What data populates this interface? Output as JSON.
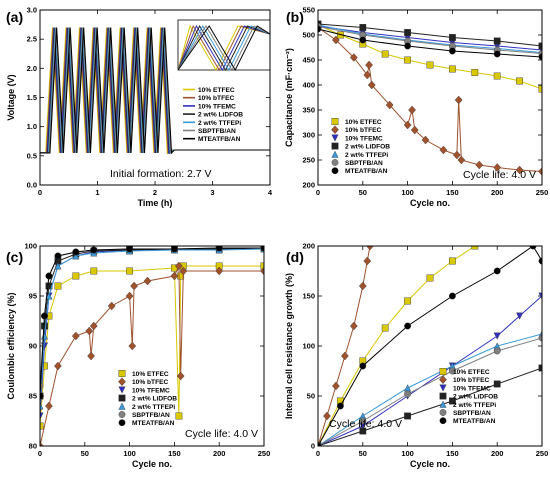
{
  "chart_data": [
    {
      "panel": "(a)",
      "type": "line",
      "title": "",
      "xlabel": "Time (h)",
      "ylabel": "Voltage (V)",
      "xlim": [
        0,
        4
      ],
      "ylim": [
        0,
        3.0
      ],
      "xticks": [
        "0",
        "1",
        "2",
        "3",
        "4"
      ],
      "yticks": [
        "0.0",
        "0.5",
        "1.0",
        "1.5",
        "2.0",
        "2.5",
        "3.0"
      ],
      "annotation": "Initial formation: 2.7 V",
      "legend_position": "right",
      "cycle": {
        "start": 0.1,
        "period": 0.235,
        "count": 9,
        "v_low": 0.55,
        "v_high": 2.7,
        "v_rest": 0.6
      },
      "series": [
        {
          "name": "10% ETFEC",
          "color": "#d9c700",
          "offset": 0.0
        },
        {
          "name": "10% bTFEC",
          "color": "#a0522d",
          "offset": 0.012
        },
        {
          "name": "10% TFEMC",
          "color": "#3030c0",
          "offset": 0.024
        },
        {
          "name": "2 wt% LiDFOB",
          "color": "#222222",
          "offset": 0.036
        },
        {
          "name": "2 wt% TTFEPi",
          "color": "#3a9ad9",
          "offset": 0.048
        },
        {
          "name": "SBPTFB/AN",
          "color": "#808080",
          "offset": 0.06
        },
        {
          "name": "MTEATFB/AN",
          "color": "#000000",
          "offset": 0.072
        }
      ]
    },
    {
      "panel": "(b)",
      "type": "line",
      "title": "",
      "xlabel": "Cycle no.",
      "ylabel": "Capacitance (mF·cm⁻²)",
      "xlim": [
        0,
        250
      ],
      "ylim": [
        200,
        550
      ],
      "xticks": [
        "0",
        "50",
        "100",
        "150",
        "200",
        "250"
      ],
      "yticks": [
        "200",
        "250",
        "300",
        "350",
        "400",
        "450",
        "500",
        "550"
      ],
      "annotation": "Cycle life: 4.0 V",
      "legend_position": "bottom-left",
      "series": [
        {
          "name": "10% ETFEC",
          "color": "#d9c700",
          "marker": "square",
          "x": [
            0,
            25,
            50,
            75,
            100,
            125,
            150,
            175,
            200,
            225,
            250
          ],
          "y": [
            520,
            500,
            482,
            462,
            450,
            440,
            432,
            425,
            418,
            408,
            392
          ]
        },
        {
          "name": "10% bTFEC",
          "color": "#a0522d",
          "marker": "diamond",
          "x": [
            0,
            20,
            40,
            55,
            57,
            60,
            80,
            100,
            105,
            108,
            120,
            140,
            155,
            157,
            160,
            180,
            200,
            225,
            250
          ],
          "y": [
            515,
            490,
            455,
            420,
            440,
            400,
            360,
            320,
            350,
            310,
            290,
            270,
            260,
            370,
            250,
            240,
            235,
            230,
            227
          ]
        },
        {
          "name": "10% TFEMC",
          "color": "#3030c0",
          "marker": "triangle-down",
          "x": [
            0,
            50,
            100,
            150,
            200,
            250
          ],
          "y": [
            518,
            505,
            495,
            485,
            478,
            470
          ]
        },
        {
          "name": "2 wt% LiDFOB",
          "color": "#222222",
          "marker": "square",
          "x": [
            0,
            50,
            100,
            150,
            200,
            250
          ],
          "y": [
            522,
            515,
            505,
            495,
            488,
            478
          ]
        },
        {
          "name": "2 wt% TTFEPi",
          "color": "#3a9ad9",
          "marker": "triangle-up",
          "x": [
            0,
            50,
            100,
            150,
            200,
            250
          ],
          "y": [
            520,
            502,
            490,
            480,
            473,
            465
          ]
        },
        {
          "name": "SBPTFB/AN",
          "color": "#808080",
          "marker": "circle",
          "x": [
            0,
            50,
            100,
            150,
            200,
            250
          ],
          "y": [
            517,
            500,
            488,
            478,
            470,
            463
          ]
        },
        {
          "name": "MTEATFB/AN",
          "color": "#000000",
          "marker": "circle",
          "x": [
            0,
            50,
            100,
            150,
            200,
            250
          ],
          "y": [
            512,
            490,
            478,
            468,
            462,
            456
          ]
        }
      ]
    },
    {
      "panel": "(c)",
      "type": "line",
      "title": "",
      "xlabel": "Cycle no.",
      "ylabel": "Coulombic efficiency (%)",
      "xlim": [
        0,
        250
      ],
      "ylim": [
        80,
        100
      ],
      "xticks": [
        "0",
        "50",
        "100",
        "150",
        "200",
        "250"
      ],
      "yticks": [
        "80",
        "85",
        "90",
        "95",
        "100"
      ],
      "annotation": "Cycle life: 4.0 V",
      "legend_position": "bottom-center",
      "series": [
        {
          "name": "10% ETFEC",
          "color": "#d9c700",
          "marker": "square",
          "x": [
            0,
            5,
            10,
            20,
            40,
            60,
            100,
            150,
            155,
            157,
            160,
            200,
            250
          ],
          "y": [
            82,
            88,
            93,
            96,
            97,
            97.5,
            97.5,
            97.8,
            83,
            97,
            98,
            98,
            98
          ]
        },
        {
          "name": "10% bTFEC",
          "color": "#a0522d",
          "marker": "diamond",
          "x": [
            0,
            10,
            20,
            40,
            55,
            57,
            60,
            80,
            100,
            103,
            105,
            120,
            150,
            155,
            157,
            160,
            200,
            250
          ],
          "y": [
            80,
            84,
            88,
            91,
            91.5,
            89,
            92,
            94,
            95,
            90,
            96,
            96.5,
            97,
            98,
            87,
            97.5,
            97.5,
            97.5
          ]
        },
        {
          "name": "10% TFEMC",
          "color": "#3030c0",
          "marker": "triangle-down",
          "x": [
            0,
            5,
            10,
            20,
            40,
            60,
            100,
            150,
            200,
            250
          ],
          "y": [
            83,
            90,
            95,
            98,
            99,
            99.4,
            99.6,
            99.7,
            99.7,
            99.8
          ]
        },
        {
          "name": "2 wt% LiDFOB",
          "color": "#222222",
          "marker": "square",
          "x": [
            0,
            5,
            10,
            20,
            40,
            60,
            100,
            150,
            200,
            250
          ],
          "y": [
            85,
            92,
            96,
            98.5,
            99.2,
            99.5,
            99.6,
            99.7,
            99.7,
            99.8
          ]
        },
        {
          "name": "2 wt% TTFEPi",
          "color": "#3a9ad9",
          "marker": "triangle-up",
          "x": [
            0,
            5,
            10,
            20,
            40,
            60,
            100,
            150,
            200,
            250
          ],
          "y": [
            84,
            91,
            95,
            98,
            99,
            99.3,
            99.5,
            99.6,
            99.6,
            99.7
          ]
        },
        {
          "name": "SBPTFB/AN",
          "color": "#808080",
          "marker": "circle",
          "x": [
            0,
            5,
            10,
            20,
            40,
            60,
            100,
            150,
            200,
            250
          ],
          "y": [
            86,
            93,
            97,
            99,
            99.4,
            99.6,
            99.7,
            99.7,
            99.8,
            99.8
          ]
        },
        {
          "name": "MTEATFB/AN",
          "color": "#000000",
          "marker": "circle",
          "x": [
            0,
            5,
            10,
            20,
            40,
            60,
            100,
            150,
            200,
            250
          ],
          "y": [
            85,
            93,
            97,
            99,
            99.4,
            99.6,
            99.7,
            99.7,
            99.8,
            99.8
          ]
        }
      ]
    },
    {
      "panel": "(d)",
      "type": "line",
      "title": "",
      "xlabel": "Cycle no.",
      "ylabel": "Internal cell resistance growth (%)",
      "xlim": [
        0,
        250
      ],
      "ylim": [
        0,
        200
      ],
      "xticks": [
        "0",
        "50",
        "100",
        "150",
        "200",
        "250"
      ],
      "yticks": [
        "0",
        "50",
        "100",
        "150",
        "200"
      ],
      "annotation": "Cycle life: 4.0 V",
      "legend_position": "bottom-right",
      "series": [
        {
          "name": "10% ETFEC",
          "color": "#d9c700",
          "marker": "square",
          "x": [
            0,
            25,
            50,
            75,
            100,
            125,
            150,
            175
          ],
          "y": [
            0,
            45,
            85,
            118,
            145,
            168,
            185,
            200
          ]
        },
        {
          "name": "10% bTFEC",
          "color": "#a0522d",
          "marker": "diamond",
          "x": [
            0,
            10,
            20,
            30,
            40,
            50,
            55,
            58
          ],
          "y": [
            0,
            30,
            60,
            90,
            120,
            160,
            185,
            200
          ]
        },
        {
          "name": "10% TFEMC",
          "color": "#3030c0",
          "marker": "triangle-down",
          "x": [
            0,
            50,
            100,
            150,
            200,
            225,
            250
          ],
          "y": [
            0,
            20,
            50,
            80,
            110,
            130,
            150
          ]
        },
        {
          "name": "2 wt% LiDFOB",
          "color": "#222222",
          "marker": "square",
          "x": [
            0,
            50,
            100,
            150,
            200,
            250
          ],
          "y": [
            0,
            15,
            30,
            45,
            62,
            78
          ]
        },
        {
          "name": "2 wt% TTFEPi",
          "color": "#3a9ad9",
          "marker": "triangle-up",
          "x": [
            0,
            50,
            100,
            150,
            200,
            250
          ],
          "y": [
            0,
            30,
            58,
            80,
            100,
            112
          ]
        },
        {
          "name": "SBPTFB/AN",
          "color": "#808080",
          "marker": "circle",
          "x": [
            0,
            50,
            100,
            150,
            200,
            250
          ],
          "y": [
            0,
            25,
            52,
            75,
            95,
            108
          ]
        },
        {
          "name": "MTEATFB/AN",
          "color": "#000000",
          "marker": "circle",
          "x": [
            0,
            25,
            50,
            100,
            150,
            200,
            240,
            250
          ],
          "y": [
            0,
            40,
            80,
            120,
            150,
            175,
            200,
            185
          ]
        }
      ]
    }
  ]
}
